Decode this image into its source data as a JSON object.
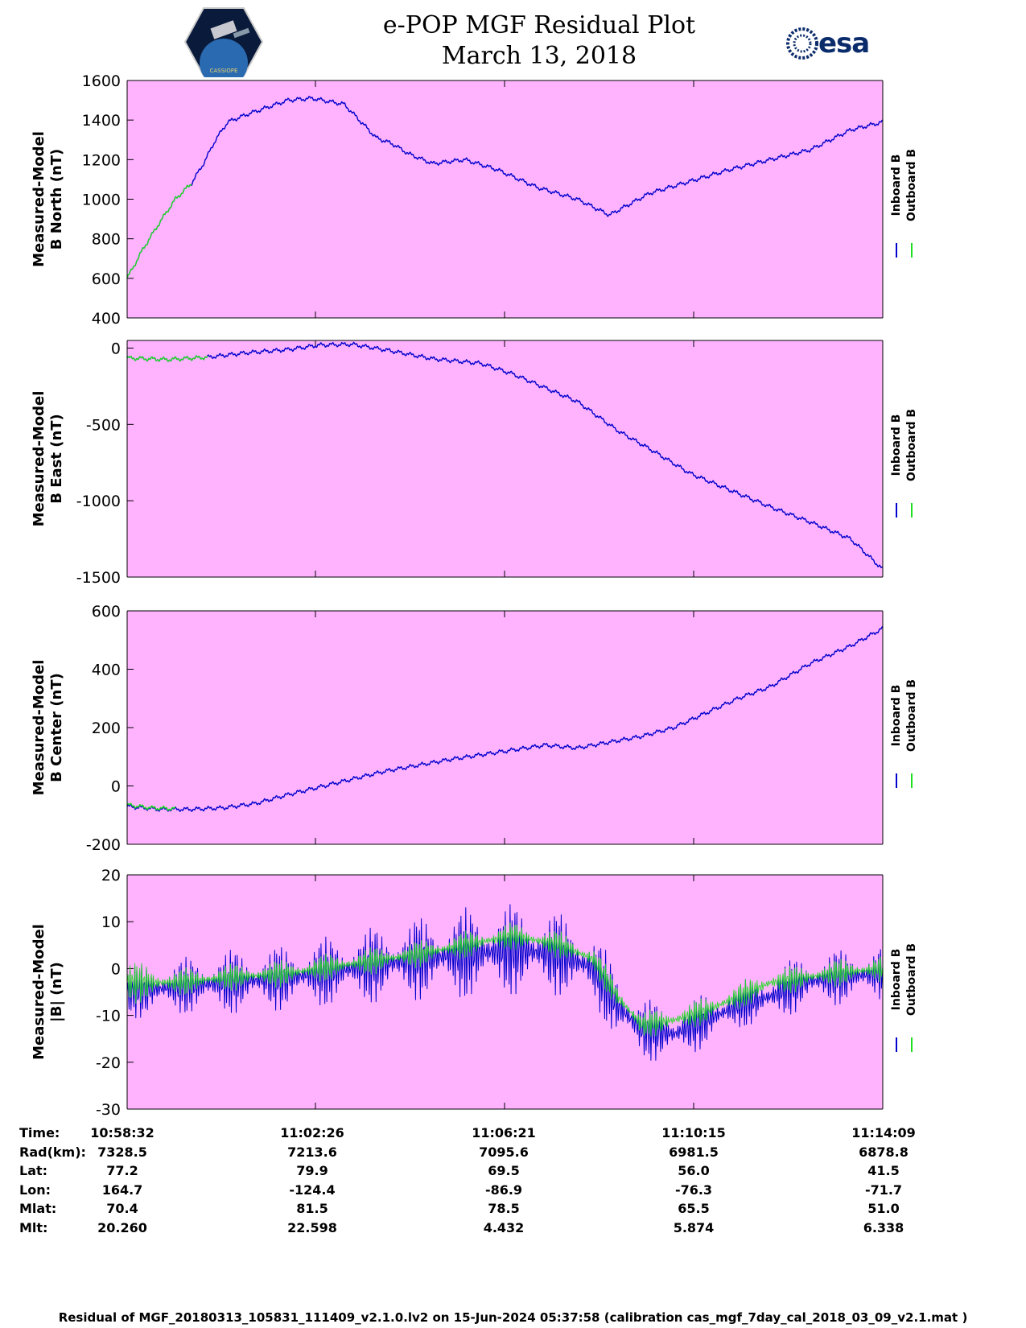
{
  "header": {
    "title_line1": "e-POP MGF Residual Plot",
    "title_line2": "March 13, 2018",
    "logo_left_text": "CASSIOPE",
    "logo_right_text": "esa"
  },
  "colors": {
    "background": "#ffb3ff",
    "inboard": "#0000cc",
    "outboard": "#22dd22"
  },
  "legend": {
    "inboard": "Inboard B",
    "outboard": "Outboard B"
  },
  "chart_data": [
    {
      "type": "line",
      "ylabel_line1": "Measured-Model",
      "ylabel_line2": "B North (nT)",
      "ylim": [
        400,
        1600
      ],
      "yticks": [
        400,
        600,
        800,
        1000,
        1200,
        1400,
        1600
      ],
      "xlim": [
        0,
        940
      ],
      "series": [
        {
          "name": "Inboard B",
          "color": "#0000cc",
          "x": [
            0,
            20,
            40,
            60,
            80,
            95,
            110,
            125,
            150,
            200,
            230,
            270,
            310,
            330,
            350,
            380,
            420,
            460,
            510,
            560,
            600,
            650,
            700,
            750,
            800,
            850,
            900,
            940
          ],
          "y": [
            600,
            750,
            880,
            1000,
            1080,
            1180,
            1300,
            1390,
            1430,
            1500,
            1510,
            1480,
            1310,
            1280,
            1230,
            1180,
            1200,
            1150,
            1060,
            1000,
            920,
            1030,
            1090,
            1150,
            1200,
            1250,
            1350,
            1390
          ]
        },
        {
          "name": "Outboard B",
          "color": "#22dd22",
          "x": [
            0,
            20,
            40,
            60,
            80
          ],
          "y": [
            600,
            750,
            880,
            1000,
            1080
          ]
        }
      ]
    },
    {
      "type": "line",
      "ylabel_line1": "Measured-Model",
      "ylabel_line2": "B East (nT)",
      "ylim": [
        -1500,
        50
      ],
      "yticks": [
        -1500,
        -1000,
        -500,
        0
      ],
      "xlim": [
        0,
        940
      ],
      "series": [
        {
          "name": "Inboard B",
          "color": "#0000cc",
          "x": [
            0,
            50,
            100,
            150,
            200,
            240,
            280,
            330,
            380,
            440,
            480,
            520,
            560,
            610,
            650,
            700,
            750,
            800,
            850,
            900,
            940
          ],
          "y": [
            -65,
            -75,
            -60,
            -30,
            -10,
            20,
            25,
            -20,
            -70,
            -100,
            -170,
            -260,
            -350,
            -540,
            -660,
            -820,
            -930,
            -1040,
            -1140,
            -1250,
            -1450
          ]
        },
        {
          "name": "Outboard B",
          "color": "#22dd22",
          "x": [
            0,
            50,
            100
          ],
          "y": [
            -65,
            -75,
            -60
          ]
        }
      ]
    },
    {
      "type": "line",
      "ylabel_line1": "Measured-Model",
      "ylabel_line2": "B Center (nT)",
      "ylim": [
        -200,
        600
      ],
      "yticks": [
        -200,
        0,
        200,
        400,
        600
      ],
      "xlim": [
        0,
        940
      ],
      "series": [
        {
          "name": "Inboard B",
          "color": "#0000cc",
          "x": [
            0,
            40,
            80,
            120,
            160,
            200,
            260,
            320,
            400,
            460,
            520,
            560,
            600,
            640,
            680,
            720,
            760,
            800,
            850,
            900,
            940
          ],
          "y": [
            -70,
            -80,
            -80,
            -75,
            -60,
            -30,
            10,
            50,
            90,
            115,
            140,
            130,
            150,
            170,
            200,
            250,
            300,
            340,
            420,
            480,
            540
          ]
        },
        {
          "name": "Outboard B",
          "color": "#22dd22",
          "x": [
            0,
            30,
            60
          ],
          "y": [
            -65,
            -75,
            -78
          ]
        }
      ]
    },
    {
      "type": "line",
      "ylabel_line1": "Measured-Model",
      "ylabel_line2": "|B| (nT)",
      "ylim": [
        -30,
        20
      ],
      "yticks": [
        -30,
        -20,
        -10,
        0,
        10,
        20
      ],
      "xlim": [
        0,
        940
      ],
      "series": [
        {
          "name": "Inboard B",
          "color": "#0000cc",
          "x": [
            0,
            60,
            120,
            200,
            280,
            360,
            420,
            480,
            540,
            580,
            610,
            640,
            680,
            720,
            760,
            800,
            840,
            880,
            940
          ],
          "y": [
            -5,
            -4,
            -3,
            -2,
            0,
            2,
            3,
            4,
            3,
            0,
            -8,
            -13,
            -14,
            -11,
            -8,
            -6,
            -3,
            -2,
            -1
          ],
          "amplitude": [
            6,
            6,
            7,
            7,
            8,
            9,
            10,
            10,
            9,
            8,
            8,
            7,
            6,
            6,
            5,
            6,
            6,
            6,
            6
          ]
        },
        {
          "name": "Outboard B",
          "color": "#22dd22",
          "x": [
            0,
            60,
            120,
            200,
            280,
            360,
            420,
            480,
            540,
            580,
            610,
            640,
            680,
            720,
            760,
            800,
            840,
            880,
            940
          ],
          "y": [
            -3,
            -3,
            -2,
            -1,
            1,
            3,
            5,
            7,
            5,
            2,
            -6,
            -12,
            -11,
            -9,
            -6,
            -3,
            -2,
            -1,
            0
          ],
          "amplitude": [
            5,
            3,
            3,
            3,
            3,
            3,
            3,
            3,
            3,
            3,
            3,
            3,
            3,
            3,
            3,
            3,
            3,
            3,
            3
          ]
        }
      ]
    }
  ],
  "x_axis": {
    "rows": [
      {
        "label": "Time:",
        "values": [
          "10:58:32",
          "11:02:26",
          "11:06:21",
          "11:10:15",
          "11:14:09"
        ]
      },
      {
        "label": "Rad(km):",
        "values": [
          "7328.5",
          "7213.6",
          "7095.6",
          "6981.5",
          "6878.8"
        ]
      },
      {
        "label": "Lat:",
        "values": [
          "77.2",
          "79.9",
          "69.5",
          "56.0",
          "41.5"
        ]
      },
      {
        "label": "Lon:",
        "values": [
          "164.7",
          "-124.4",
          "-86.9",
          "-76.3",
          "-71.7"
        ]
      },
      {
        "label": "Mlat:",
        "values": [
          "70.4",
          "81.5",
          "78.5",
          "65.5",
          "51.0"
        ]
      },
      {
        "label": "Mlt:",
        "values": [
          "20.260",
          "22.598",
          "4.432",
          "5.874",
          "6.338"
        ]
      }
    ]
  },
  "footer": "Residual of MGF_20180313_105831_111409_v2.1.0.lv2 on 15-Jun-2024 05:37:58 (calibration cas_mgf_7day_cal_2018_03_09_v2.1.mat )"
}
